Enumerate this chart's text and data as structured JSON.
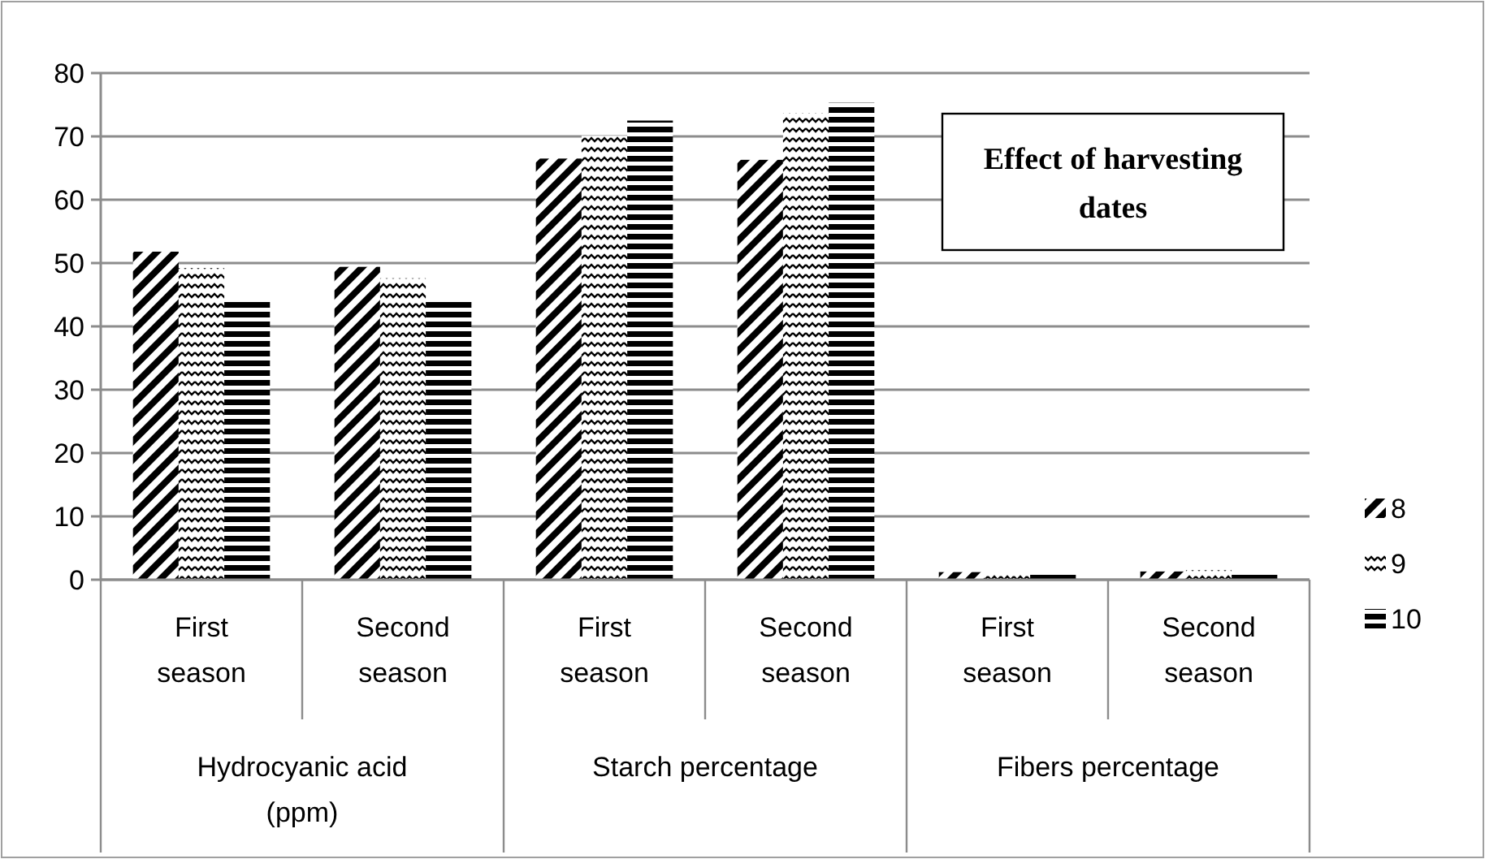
{
  "chart_data": {
    "type": "bar",
    "title": "Effect of harvesting dates",
    "categories": [
      "First season",
      "Second season",
      "First season",
      "Second season",
      "First season",
      "Second season"
    ],
    "annotations": [
      "Hydrocyanic acid (ppm)",
      "Starch percentage",
      "Fibers percentage"
    ],
    "series": [
      {
        "name": "8",
        "color": "#000000",
        "values": [
          51.8,
          49.4,
          66.5,
          66.3,
          1.2,
          1.3
        ]
      },
      {
        "name": "9",
        "color": "#000000",
        "values": [
          49.2,
          47.6,
          70.1,
          73.7,
          1.0,
          1.5
        ]
      },
      {
        "name": "10",
        "color": "#000000",
        "values": [
          44.1,
          44.1,
          72.5,
          75.3,
          1.2,
          1.2
        ]
      }
    ],
    "ylim": [
      0,
      80
    ],
    "yticks": [
      0,
      10,
      20,
      30,
      40,
      50,
      60,
      70,
      80
    ],
    "grid": "y",
    "legend": "right"
  }
}
